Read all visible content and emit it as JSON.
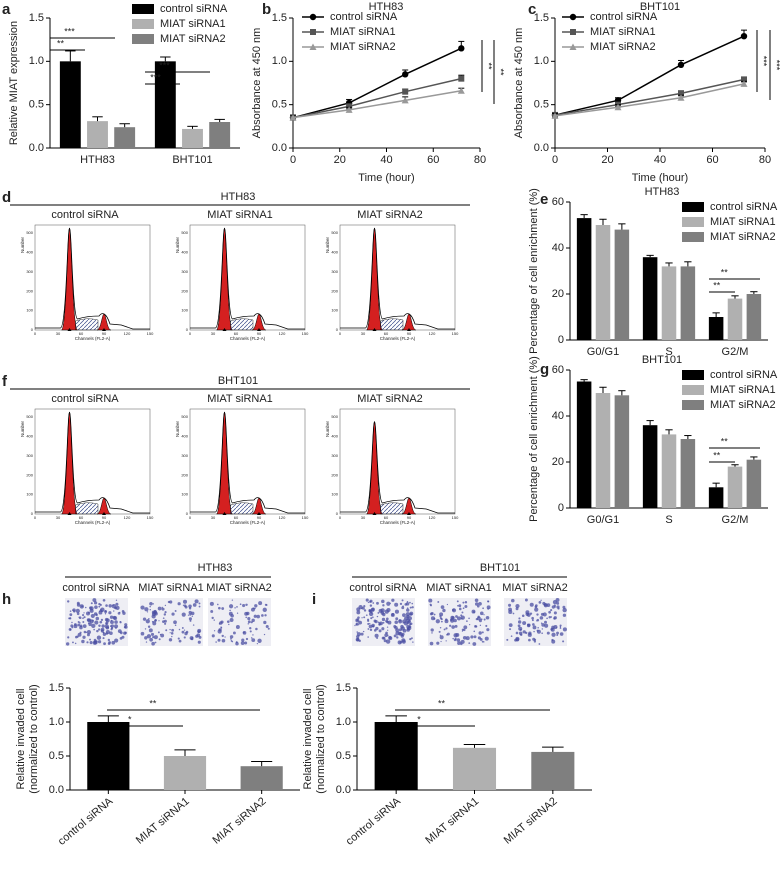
{
  "chart_data": [
    {
      "type": "bar",
      "label": "a",
      "ylabel": "Relative MIAT expression",
      "categories": [
        "HTH83",
        "BHT101"
      ],
      "series": [
        {
          "name": "control siRNA",
          "color": "#000000",
          "values": [
            1.0,
            1.0
          ],
          "errors": [
            0.12,
            0.05
          ]
        },
        {
          "name": "MIAT siRNA1",
          "color": "#b0b0b0",
          "values": [
            0.31,
            0.22
          ],
          "errors": [
            0.05,
            0.03
          ]
        },
        {
          "name": "MIAT siRNA2",
          "color": "#7f7f7f",
          "values": [
            0.24,
            0.3
          ],
          "errors": [
            0.04,
            0.03
          ]
        }
      ],
      "ylim": [
        0,
        1.5
      ],
      "yticks": [
        {
          "value": 0,
          "label": "0.0"
        },
        {
          "value": 0.5,
          "label": "0.5"
        },
        {
          "value": 1,
          "label": "1.0"
        },
        {
          "value": 1.5,
          "label": "1.5"
        }
      ],
      "annotations": [
        "**",
        "***",
        "***",
        "***"
      ]
    },
    {
      "type": "line",
      "label": "b",
      "title": "HTH83",
      "xlabel": "Time (hour)",
      "ylabel": "Absorbance at 450 nm",
      "x": [
        0,
        24,
        48,
        72
      ],
      "series": [
        {
          "name": "control siRNA",
          "color": "#000000",
          "marker": "circle",
          "values": [
            0.35,
            0.52,
            0.85,
            1.15
          ],
          "errors": [
            0.03,
            0.04,
            0.05,
            0.08
          ]
        },
        {
          "name": "MIAT siRNA1",
          "color": "#555555",
          "marker": "square",
          "values": [
            0.35,
            0.48,
            0.65,
            0.8
          ],
          "errors": [
            0.03,
            0.03,
            0.03,
            0.04
          ]
        },
        {
          "name": "MIAT siRNA2",
          "color": "#999999",
          "marker": "triangle",
          "values": [
            0.35,
            0.44,
            0.55,
            0.66
          ],
          "errors": [
            0.03,
            0.03,
            0.04,
            0.03
          ]
        }
      ],
      "xlim": [
        0,
        80
      ],
      "xticks": [
        0,
        20,
        40,
        60,
        80
      ],
      "ylim": [
        0,
        1.5
      ],
      "yticks": [
        {
          "value": 0,
          "label": "0.0"
        },
        {
          "value": 0.5,
          "label": "0.5"
        },
        {
          "value": 1,
          "label": "1.0"
        },
        {
          "value": 1.5,
          "label": "1.5"
        }
      ],
      "annotations": [
        "**",
        "**"
      ]
    },
    {
      "type": "line",
      "label": "c",
      "title": "BHT101",
      "xlabel": "Time (hour)",
      "ylabel": "Absorbance at 450 nm",
      "x": [
        0,
        24,
        48,
        72
      ],
      "series": [
        {
          "name": "control siRNA",
          "color": "#000000",
          "marker": "circle",
          "values": [
            0.38,
            0.55,
            0.96,
            1.29
          ],
          "errors": [
            0.03,
            0.03,
            0.05,
            0.07
          ]
        },
        {
          "name": "MIAT siRNA1",
          "color": "#555555",
          "marker": "square",
          "values": [
            0.38,
            0.5,
            0.63,
            0.79
          ],
          "errors": [
            0.03,
            0.03,
            0.03,
            0.03
          ]
        },
        {
          "name": "MIAT siRNA2",
          "color": "#999999",
          "marker": "triangle",
          "values": [
            0.37,
            0.47,
            0.58,
            0.74
          ],
          "errors": [
            0.03,
            0.03,
            0.03,
            0.03
          ]
        }
      ],
      "xlim": [
        0,
        80
      ],
      "xticks": [
        0,
        20,
        40,
        60,
        80
      ],
      "ylim": [
        0,
        1.5
      ],
      "yticks": [
        {
          "value": 0,
          "label": "0.0"
        },
        {
          "value": 0.5,
          "label": "0.5"
        },
        {
          "value": 1,
          "label": "1.0"
        },
        {
          "value": 1.5,
          "label": "1.5"
        }
      ],
      "annotations": [
        "***",
        "***"
      ]
    },
    {
      "type": "bar",
      "label": "e",
      "title": "HTH83",
      "ylabel": "Percentage of cell enrichment (%)",
      "categories": [
        "G0/G1",
        "S",
        "G2/M"
      ],
      "series": [
        {
          "name": "control siRNA",
          "color": "#000000",
          "values": [
            53,
            36,
            10
          ],
          "errors": [
            1.5,
            0.8,
            1.8
          ]
        },
        {
          "name": "MIAT siRNA1",
          "color": "#b0b0b0",
          "values": [
            50,
            32,
            18
          ],
          "errors": [
            2.5,
            1.5,
            1.2
          ]
        },
        {
          "name": "MIAT siRNA2",
          "color": "#7f7f7f",
          "values": [
            48,
            32,
            20
          ],
          "errors": [
            2.5,
            2,
            1
          ]
        }
      ],
      "ylim": [
        0,
        60
      ],
      "yticks": [
        0,
        20,
        40,
        60
      ],
      "annotations": [
        "**",
        "**"
      ]
    },
    {
      "type": "bar",
      "label": "g",
      "title": "BHT101",
      "ylabel": "Percentage of cell enrichment (%)",
      "categories": [
        "G0/G1",
        "S",
        "G2/M"
      ],
      "series": [
        {
          "name": "control siRNA",
          "color": "#000000",
          "values": [
            55,
            36,
            9
          ],
          "errors": [
            0.8,
            2,
            1.8
          ]
        },
        {
          "name": "MIAT siRNA1",
          "color": "#b0b0b0",
          "values": [
            50,
            32,
            18
          ],
          "errors": [
            2.5,
            2,
            0.8
          ]
        },
        {
          "name": "MIAT siRNA2",
          "color": "#7f7f7f",
          "values": [
            49,
            30,
            21
          ],
          "errors": [
            2,
            1.5,
            1.2
          ]
        }
      ],
      "ylim": [
        0,
        60
      ],
      "yticks": [
        0,
        20,
        40,
        60
      ],
      "annotations": [
        "**",
        "**"
      ]
    },
    {
      "type": "bar",
      "label": "h",
      "title": "HTH83",
      "ylabel": [
        "Relative invaded cell",
        "(normalized to control)"
      ],
      "categories": [
        "control siRNA",
        "MIAT siRNA1",
        "MIAT siRNA2"
      ],
      "image_labels": [
        "control siRNA",
        "MIAT siRNA1",
        "MIAT siRNA2"
      ],
      "values": [
        1.0,
        0.5,
        0.35
      ],
      "errors": [
        0.09,
        0.09,
        0.07
      ],
      "colors": [
        "#000000",
        "#b0b0b0",
        "#7f7f7f"
      ],
      "ylim": [
        0,
        1.5
      ],
      "yticks": [
        {
          "value": 0,
          "label": "0.0"
        },
        {
          "value": 0.5,
          "label": "0.5"
        },
        {
          "value": 1,
          "label": "1.0"
        },
        {
          "value": 1.5,
          "label": "1.5"
        }
      ],
      "annotations": [
        "*",
        "**"
      ]
    },
    {
      "type": "bar",
      "label": "i",
      "title": "BHT101",
      "ylabel": [
        "Relative invaded cell",
        "(normalized to control)"
      ],
      "categories": [
        "control siRNA",
        "MIAT siRNA1",
        "MIAT siRNA2"
      ],
      "image_labels": [
        "control siRNA",
        "MIAT siRNA1",
        "MIAT siRNA2"
      ],
      "values": [
        1.0,
        0.62,
        0.56
      ],
      "errors": [
        0.09,
        0.05,
        0.07
      ],
      "colors": [
        "#000000",
        "#b0b0b0",
        "#7f7f7f"
      ],
      "ylim": [
        0,
        1.5
      ],
      "yticks": [
        {
          "value": 0,
          "label": "0.0"
        },
        {
          "value": 0.5,
          "label": "0.5"
        },
        {
          "value": 1,
          "label": "1.0"
        },
        {
          "value": 1.5,
          "label": "1.5"
        }
      ],
      "annotations": [
        "*",
        "**"
      ]
    }
  ],
  "flow_panels": [
    {
      "label": "d",
      "title": "HTH83",
      "plots": [
        "control siRNA",
        "MIAT siRNA1",
        "MIAT siRNA2"
      ]
    },
    {
      "label": "f",
      "title": "BHT101",
      "plots": [
        "control siRNA",
        "MIAT siRNA1",
        "MIAT siRNA2"
      ]
    }
  ],
  "flow_axis": {
    "xlabel": "Channels (FL2-A)",
    "ylabel": "Number",
    "xticks": [
      0,
      30,
      60,
      90,
      120,
      150
    ],
    "yticks": [
      0,
      100,
      200,
      300,
      400,
      500
    ]
  }
}
